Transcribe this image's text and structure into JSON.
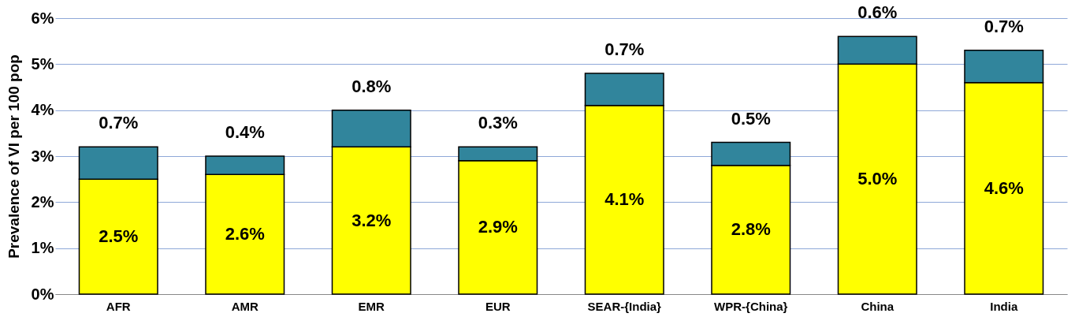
{
  "chart_data": {
    "type": "bar",
    "stacked": true,
    "ylabel": "Prevalence of VI per  100 pop",
    "categories": [
      "AFR",
      "AMR",
      "EMR",
      "EUR",
      "SEAR-{India}",
      "WPR-{China}",
      "China",
      "India"
    ],
    "series": [
      {
        "color": "#ffff00",
        "values": [
          2.5,
          2.6,
          3.2,
          2.9,
          4.1,
          2.8,
          5.0,
          4.6
        ],
        "value_labels": [
          "2.5%",
          "2.6%",
          "3.2%",
          "2.9%",
          "4.1%",
          "2.8%",
          "5.0%",
          "4.6%"
        ]
      },
      {
        "color": "#31859c",
        "values": [
          0.7,
          0.4,
          0.8,
          0.3,
          0.7,
          0.5,
          0.6,
          0.7
        ],
        "value_labels": [
          "0.7%",
          "0.4%",
          "0.8%",
          "0.3%",
          "0.7%",
          "0.5%",
          "0.6%",
          "0.7%"
        ]
      }
    ],
    "ylim": [
      0,
      6
    ],
    "yticks": [
      {
        "value": 0,
        "label": "0%"
      },
      {
        "value": 1,
        "label": "1%"
      },
      {
        "value": 2,
        "label": "2%"
      },
      {
        "value": 3,
        "label": "3%"
      },
      {
        "value": 4,
        "label": "4%"
      },
      {
        "value": 5,
        "label": "5%"
      },
      {
        "value": 6,
        "label": "6%"
      }
    ],
    "grid": "y"
  }
}
